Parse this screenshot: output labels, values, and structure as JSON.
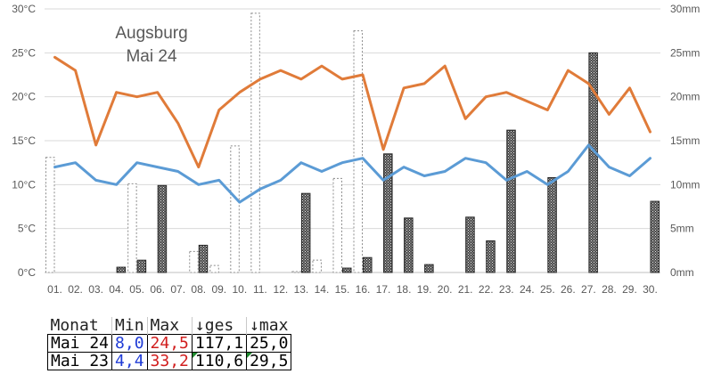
{
  "chart_data": {
    "type": "bar+line",
    "title_lines": [
      "Augsburg",
      "Mai 24"
    ],
    "categories": [
      "01.",
      "02.",
      "03.",
      "04.",
      "05.",
      "06.",
      "07.",
      "08.",
      "09.",
      "10.",
      "11.",
      "12.",
      "13.",
      "14.",
      "15.",
      "16.",
      "17.",
      "18.",
      "19.",
      "20.",
      "21.",
      "22.",
      "23.",
      "24.",
      "25.",
      "26.",
      "27.",
      "28.",
      "29.",
      "30."
    ],
    "y_left": {
      "ticks": [
        "0°C",
        "5°C",
        "10°C",
        "15°C",
        "20°C",
        "25°C",
        "30°C"
      ],
      "min": 0,
      "max": 30
    },
    "y_right": {
      "ticks": [
        "0mm",
        "5mm",
        "10mm",
        "15mm",
        "20mm",
        "25mm",
        "30mm"
      ],
      "min": 0,
      "max": 30
    },
    "grid": true,
    "series": [
      {
        "kind": "line",
        "color": "#e07b39",
        "values": [
          24.5,
          23,
          14.5,
          20.5,
          20,
          20.5,
          17,
          12,
          18.5,
          20.5,
          22,
          23,
          22,
          23.5,
          22,
          22.5,
          14,
          21,
          21.5,
          23.5,
          17.5,
          20,
          20.5,
          19.5,
          18.5,
          23,
          21.5,
          18,
          21,
          16
        ]
      },
      {
        "kind": "line",
        "color": "#5b9bd5",
        "values": [
          12,
          12.5,
          10.5,
          10,
          12.5,
          12,
          11.5,
          10,
          10.5,
          8,
          9.5,
          10.5,
          12.5,
          11.5,
          12.5,
          13,
          10.5,
          12,
          11,
          11.5,
          13,
          12.5,
          10.5,
          11.5,
          10,
          11.5,
          14.5,
          12,
          11,
          13
        ]
      },
      {
        "kind": "bar",
        "style": "dark-hatched",
        "axis": "right",
        "values": [
          0,
          0,
          0,
          0.6,
          1.4,
          9.9,
          0,
          3.1,
          0,
          0,
          0,
          0,
          9,
          0,
          0.5,
          1.7,
          13.5,
          6.2,
          0.9,
          0,
          6.3,
          3.6,
          16.2,
          0,
          10.8,
          0,
          25,
          0,
          0,
          8.1
        ]
      },
      {
        "kind": "bar",
        "style": "dashed-outline",
        "axis": "right",
        "values": [
          13.1,
          0,
          0,
          0,
          10.1,
          0,
          0,
          2.4,
          0.8,
          14.4,
          29.5,
          0,
          0.1,
          1.4,
          10.7,
          27.5,
          0,
          0,
          0,
          0,
          0,
          0,
          0,
          0,
          0,
          0,
          0,
          0,
          0,
          0
        ]
      }
    ]
  },
  "summary_table": {
    "headers": [
      "Monat",
      "Min",
      "Max",
      "↓ges",
      "↓max"
    ],
    "rows": [
      {
        "month": "Mai 24",
        "min": "8,0",
        "max": "24,5",
        "ges": "117,1",
        "rmax": "25,0"
      },
      {
        "month": "Mai 23",
        "min": "4,4",
        "max": "33,2",
        "ges": "110,6",
        "rmax": "29,5"
      }
    ]
  }
}
